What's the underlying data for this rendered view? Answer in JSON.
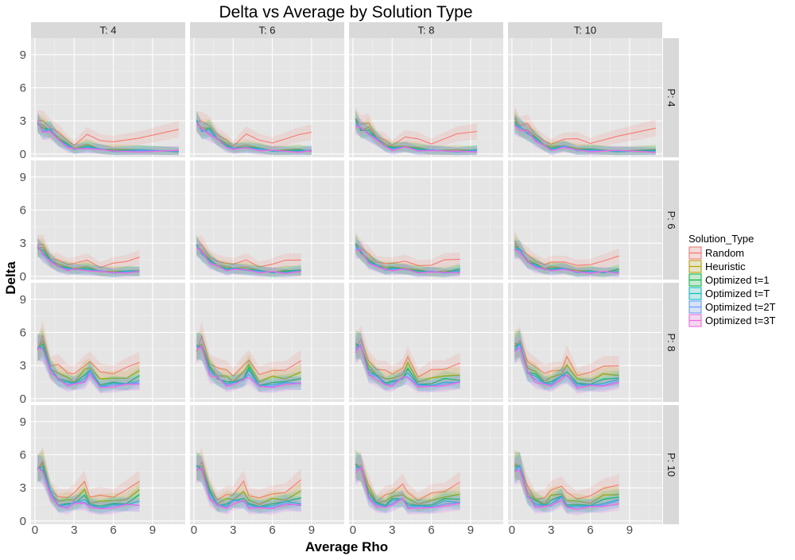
{
  "chart_data": {
    "type": "line",
    "title": "Delta vs Average by Solution Type",
    "xlabel": "Average Rho",
    "ylabel": "Delta",
    "xlim": [
      -0.3,
      11.5
    ],
    "ylim": [
      -0.3,
      10.5
    ],
    "x_ticks": [
      "0",
      "3",
      "6",
      "9"
    ],
    "y_ticks": [
      "0",
      "3",
      "6",
      "9"
    ],
    "col_facets": [
      "T: 4",
      "T: 6",
      "T: 8",
      "T: 10"
    ],
    "row_facets": [
      "P: 4",
      "P: 6",
      "P: 8",
      "P: 10"
    ],
    "legend": {
      "title": "Solution_Type",
      "position": "right",
      "entries": [
        "Random",
        "Heuristic",
        "Optimized t=1",
        "Optimized t=T",
        "Optimized t=2T",
        "Optimized t=3T"
      ]
    },
    "colors": [
      "#F8766D",
      "#B79F00",
      "#00BA38",
      "#00BFC4",
      "#619CFF",
      "#F564E3"
    ],
    "grid": true,
    "facet_x_max": {
      "P: 4": [
        11,
        9,
        9.5,
        11
      ],
      "P: 6": [
        8,
        8.5,
        8.5,
        8.5
      ],
      "P: 8": [
        8,
        8.5,
        8.5,
        8.5
      ],
      "P: 10": [
        8,
        8.5,
        8.5,
        8.5
      ]
    },
    "series": [
      {
        "name": "Random",
        "rows": {
          "P: 4": {
            "x": [
              0.2,
              0.6,
              1.2,
              1.8,
              2.5,
              3.0,
              4.0,
              5.0,
              6.0,
              8.0,
              11.0
            ],
            "y": [
              3.2,
              2.8,
              2.6,
              1.8,
              1.2,
              0.8,
              1.6,
              1.3,
              1.0,
              1.6,
              2.2
            ]
          },
          "P: 6": {
            "x": [
              0.2,
              0.6,
              1.2,
              1.8,
              2.5,
              3.0,
              4.0,
              5.0,
              6.0,
              7.0,
              8.2
            ],
            "y": [
              3.0,
              2.7,
              1.8,
              1.4,
              1.1,
              1.2,
              1.4,
              0.9,
              1.1,
              1.4,
              1.7
            ]
          },
          "P: 8": {
            "x": [
              0.2,
              0.6,
              1.2,
              1.8,
              2.5,
              3.0,
              3.8,
              4.2,
              5.0,
              6.0,
              7.0,
              8.2
            ],
            "y": [
              4.5,
              5.5,
              3.2,
              2.9,
              2.4,
              2.3,
              2.8,
              3.6,
              2.2,
              2.4,
              2.8,
              3.2
            ]
          },
          "P: 10": {
            "x": [
              0.2,
              0.6,
              1.2,
              1.8,
              2.5,
              3.0,
              3.8,
              4.2,
              5.0,
              6.0,
              7.0,
              8.2
            ],
            "y": [
              4.8,
              5.2,
              3.0,
              2.0,
              2.2,
              2.6,
              3.4,
              2.4,
              2.1,
              2.3,
              2.8,
              3.5
            ]
          }
        }
      },
      {
        "name": "Heuristic",
        "rows": {
          "P: 4": {
            "x": [
              0.2,
              0.6,
              1.2,
              1.8,
              2.5,
              3.0,
              4.0,
              5.0,
              6.0,
              8.0,
              11.0
            ],
            "y": [
              3.0,
              2.4,
              2.2,
              1.5,
              0.9,
              0.6,
              0.8,
              0.5,
              0.4,
              0.35,
              0.3
            ]
          },
          "P: 6": {
            "x": [
              0.2,
              0.6,
              1.2,
              1.8,
              2.5,
              3.0,
              4.0,
              5.0,
              6.0,
              7.0,
              8.2
            ],
            "y": [
              2.8,
              2.4,
              1.5,
              1.1,
              0.8,
              0.8,
              0.8,
              0.5,
              0.45,
              0.45,
              0.5
            ]
          },
          "P: 8": {
            "x": [
              0.2,
              0.6,
              1.2,
              1.8,
              2.5,
              3.0,
              3.8,
              4.2,
              5.0,
              6.0,
              7.0,
              8.2
            ],
            "y": [
              4.8,
              5.0,
              2.8,
              2.3,
              1.8,
              1.7,
              2.4,
              3.0,
              1.7,
              1.8,
              2.0,
              2.3
            ]
          },
          "P: 10": {
            "x": [
              0.2,
              0.6,
              1.2,
              1.8,
              2.5,
              3.0,
              3.8,
              4.2,
              5.0,
              6.0,
              7.0,
              8.2
            ],
            "y": [
              5.0,
              5.0,
              2.6,
              1.8,
              1.8,
              2.1,
              2.6,
              1.8,
              1.7,
              1.8,
              2.1,
              2.6
            ]
          }
        }
      },
      {
        "name": "Optimized t=1",
        "rows": {
          "P: 4": {
            "x": [
              0.2,
              0.6,
              1.2,
              1.8,
              2.5,
              3.0,
              4.0,
              5.0,
              6.0,
              8.0,
              11.0
            ],
            "y": [
              2.9,
              2.3,
              2.1,
              1.4,
              0.8,
              0.5,
              0.7,
              0.45,
              0.35,
              0.3,
              0.3
            ]
          },
          "P: 6": {
            "x": [
              0.2,
              0.6,
              1.2,
              1.8,
              2.5,
              3.0,
              4.0,
              5.0,
              6.0,
              7.0,
              8.2
            ],
            "y": [
              2.7,
              2.3,
              1.4,
              1.0,
              0.7,
              0.7,
              0.7,
              0.45,
              0.4,
              0.4,
              0.6
            ]
          },
          "P: 8": {
            "x": [
              0.2,
              0.6,
              1.2,
              1.8,
              2.5,
              3.0,
              3.8,
              4.2,
              5.0,
              6.0,
              7.0,
              8.2
            ],
            "y": [
              4.7,
              4.9,
              2.6,
              2.0,
              1.5,
              1.5,
              2.0,
              2.6,
              1.3,
              1.4,
              1.6,
              1.9
            ]
          },
          "P: 10": {
            "x": [
              0.2,
              0.6,
              1.2,
              1.8,
              2.5,
              3.0,
              3.8,
              4.2,
              5.0,
              6.0,
              7.0,
              8.2
            ],
            "y": [
              4.9,
              4.9,
              2.5,
              1.6,
              1.5,
              1.8,
              2.2,
              1.5,
              1.4,
              1.5,
              1.8,
              2.2
            ]
          }
        }
      },
      {
        "name": "Optimized t=T",
        "rows": {
          "P: 4": {
            "x": [
              0.2,
              0.6,
              1.2,
              1.8,
              2.5,
              3.0,
              4.0,
              5.0,
              6.0,
              8.0,
              11.0
            ],
            "y": [
              2.85,
              2.25,
              2.05,
              1.35,
              0.75,
              0.45,
              0.65,
              0.4,
              0.3,
              0.28,
              0.28
            ]
          },
          "P: 6": {
            "x": [
              0.2,
              0.6,
              1.2,
              1.8,
              2.5,
              3.0,
              4.0,
              5.0,
              6.0,
              7.0,
              8.2
            ],
            "y": [
              2.65,
              2.25,
              1.35,
              0.95,
              0.65,
              0.65,
              0.65,
              0.42,
              0.38,
              0.38,
              0.45
            ]
          },
          "P: 8": {
            "x": [
              0.2,
              0.6,
              1.2,
              1.8,
              2.5,
              3.0,
              3.8,
              4.2,
              5.0,
              6.0,
              7.0,
              8.2
            ],
            "y": [
              4.6,
              4.8,
              2.5,
              1.9,
              1.4,
              1.4,
              1.9,
              2.4,
              1.2,
              1.3,
              1.4,
              1.6
            ]
          },
          "P: 10": {
            "x": [
              0.2,
              0.6,
              1.2,
              1.8,
              2.5,
              3.0,
              3.8,
              4.2,
              5.0,
              6.0,
              7.0,
              8.2
            ],
            "y": [
              4.8,
              4.8,
              2.4,
              1.5,
              1.4,
              1.7,
              2.0,
              1.4,
              1.3,
              1.4,
              1.6,
              1.8
            ]
          }
        }
      },
      {
        "name": "Optimized t=2T",
        "rows": {
          "P: 4": {
            "x": [
              0.2,
              0.6,
              1.2,
              1.8,
              2.5,
              3.0,
              4.0,
              5.0,
              6.0,
              8.0,
              11.0
            ],
            "y": [
              2.8,
              2.2,
              2.0,
              1.3,
              0.7,
              0.4,
              0.6,
              0.38,
              0.28,
              0.26,
              0.26
            ]
          },
          "P: 6": {
            "x": [
              0.2,
              0.6,
              1.2,
              1.8,
              2.5,
              3.0,
              4.0,
              5.0,
              6.0,
              7.0,
              8.2
            ],
            "y": [
              2.6,
              2.2,
              1.3,
              0.9,
              0.6,
              0.6,
              0.6,
              0.4,
              0.36,
              0.36,
              0.4
            ]
          },
          "P: 8": {
            "x": [
              0.2,
              0.6,
              1.2,
              1.8,
              2.5,
              3.0,
              3.8,
              4.2,
              5.0,
              6.0,
              7.0,
              8.2
            ],
            "y": [
              4.5,
              4.7,
              2.4,
              1.8,
              1.3,
              1.3,
              1.8,
              2.2,
              1.1,
              1.2,
              1.3,
              1.5
            ]
          },
          "P: 10": {
            "x": [
              0.2,
              0.6,
              1.2,
              1.8,
              2.5,
              3.0,
              3.8,
              4.2,
              5.0,
              6.0,
              7.0,
              8.2
            ],
            "y": [
              4.7,
              4.7,
              2.3,
              1.4,
              1.3,
              1.6,
              1.9,
              1.3,
              1.2,
              1.3,
              1.5,
              1.6
            ]
          }
        }
      },
      {
        "name": "Optimized t=3T",
        "rows": {
          "P: 4": {
            "x": [
              0.2,
              0.6,
              1.2,
              1.8,
              2.5,
              3.0,
              4.0,
              5.0,
              6.0,
              8.0,
              11.0
            ],
            "y": [
              2.75,
              2.15,
              1.95,
              1.25,
              0.65,
              0.38,
              0.55,
              0.35,
              0.26,
              0.24,
              0.24
            ]
          },
          "P: 6": {
            "x": [
              0.2,
              0.6,
              1.2,
              1.8,
              2.5,
              3.0,
              4.0,
              5.0,
              6.0,
              7.0,
              8.2
            ],
            "y": [
              2.55,
              2.15,
              1.25,
              0.85,
              0.58,
              0.58,
              0.58,
              0.38,
              0.34,
              0.34,
              0.38
            ]
          },
          "P: 8": {
            "x": [
              0.2,
              0.6,
              1.2,
              1.8,
              2.5,
              3.0,
              3.8,
              4.2,
              5.0,
              6.0,
              7.0,
              8.2
            ],
            "y": [
              4.4,
              4.6,
              2.3,
              1.7,
              1.2,
              1.2,
              1.7,
              2.1,
              1.0,
              1.1,
              1.2,
              1.4
            ]
          },
          "P: 10": {
            "x": [
              0.2,
              0.6,
              1.2,
              1.8,
              2.5,
              3.0,
              3.8,
              4.2,
              5.0,
              6.0,
              7.0,
              8.2
            ],
            "y": [
              4.6,
              4.6,
              2.2,
              1.3,
              1.2,
              1.5,
              1.8,
              1.2,
              1.1,
              1.2,
              1.4,
              1.5
            ]
          }
        }
      }
    ]
  }
}
